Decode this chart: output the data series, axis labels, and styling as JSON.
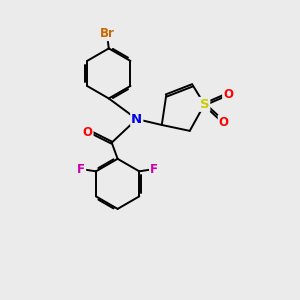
{
  "background_color": "#ebebeb",
  "figure_size": [
    3.0,
    3.0
  ],
  "dpi": 100,
  "atom_colors": {
    "C": "#000000",
    "N": "#0000ee",
    "O": "#ff0000",
    "S": "#cccc00",
    "F": "#cc00aa",
    "Br": "#cc6600"
  },
  "bond_color": "#000000",
  "bond_width": 1.4,
  "font_size_atom": 8.5
}
